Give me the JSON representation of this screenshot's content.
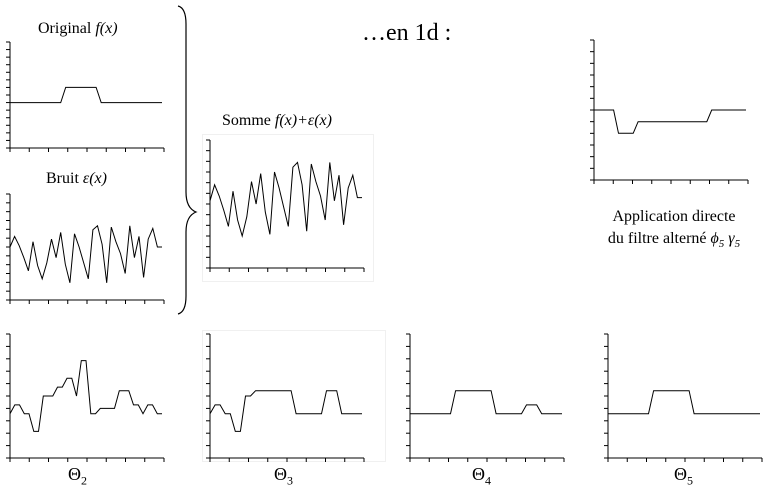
{
  "title": "…en 1d :",
  "original": {
    "prefix": "Original ",
    "func": "f(x)"
  },
  "noise": {
    "prefix": "Bruit ",
    "func": "ε(x)"
  },
  "sum": {
    "prefix": "Somme ",
    "func": "f(x)+ε(x)"
  },
  "application": {
    "line1": "Application directe",
    "line2_prefix": "du filtre alterné ",
    "phi": "ϕ",
    "gamma": "γ",
    "sub": "5"
  },
  "theta_labels": [
    {
      "symbol": "Θ",
      "sub": "2"
    },
    {
      "symbol": "Θ",
      "sub": "3"
    },
    {
      "symbol": "Θ",
      "sub": "4"
    },
    {
      "symbol": "Θ",
      "sub": "5"
    }
  ],
  "chart_data": [
    {
      "type": "line",
      "name": "original",
      "y": [
        3,
        3,
        3,
        3,
        3,
        3,
        3,
        3,
        3,
        3,
        3,
        4,
        4,
        4,
        4,
        4,
        4,
        4,
        3,
        3,
        3,
        3,
        3,
        3,
        3,
        3,
        3,
        3,
        3,
        3,
        3
      ],
      "ylim": [
        0,
        7
      ]
    },
    {
      "type": "line",
      "name": "noise",
      "y": [
        4,
        4.8,
        4.1,
        3.2,
        2.2,
        4.4,
        2.6,
        1.6,
        2.8,
        4.6,
        3.2,
        5.1,
        2.7,
        1.3,
        5.0,
        4.0,
        2.8,
        1.6,
        5.3,
        5.6,
        4.2,
        1.3,
        5.5,
        4.4,
        3.5,
        2.0,
        5.6,
        3.2,
        4.8,
        1.7,
        4.6,
        5.4,
        4.0,
        4.0
      ],
      "ylim": [
        0,
        8
      ]
    },
    {
      "type": "line",
      "name": "sum",
      "y": [
        4.2,
        5.2,
        4.5,
        3.6,
        2.6,
        4.8,
        3.0,
        2.0,
        3.2,
        5.4,
        4.0,
        5.9,
        3.5,
        2.1,
        6.0,
        5.0,
        3.8,
        2.6,
        6.3,
        6.6,
        5.2,
        2.3,
        6.5,
        5.4,
        4.5,
        3.0,
        6.6,
        4.2,
        5.8,
        2.7,
        5.0,
        5.8,
        4.4,
        4.4
      ],
      "ylim": [
        0,
        8
      ]
    },
    {
      "type": "line",
      "name": "phi5_gamma5",
      "y": [
        3,
        3,
        3,
        3,
        3,
        2,
        2,
        2,
        2,
        2.5,
        2.5,
        2.5,
        2.5,
        2.5,
        2.5,
        2.5,
        2.5,
        2.5,
        2.5,
        2.5,
        2.5,
        2.5,
        2.5,
        2.5,
        3,
        3,
        3,
        3,
        3,
        3,
        3,
        3
      ],
      "ylim": [
        0,
        6
      ]
    },
    {
      "type": "line",
      "name": "theta2",
      "y": [
        2.5,
        3,
        3,
        2.5,
        2.5,
        1.5,
        1.5,
        3.5,
        3.5,
        3.5,
        4,
        4,
        4.5,
        4.5,
        3.5,
        5.5,
        5.5,
        2.5,
        2.5,
        2.8,
        2.8,
        2.8,
        2.8,
        3.8,
        3.8,
        3.8,
        3,
        3,
        2.5,
        3,
        3,
        2.5,
        2.5
      ],
      "ylim": [
        0,
        7
      ]
    },
    {
      "type": "line",
      "name": "theta3",
      "y": [
        2.5,
        3,
        3,
        2.5,
        2.5,
        1.5,
        1.5,
        3.5,
        3.5,
        3.8,
        3.8,
        3.8,
        3.8,
        3.8,
        3.8,
        3.8,
        3.8,
        2.5,
        2.5,
        2.5,
        2.5,
        2.5,
        2.5,
        3.8,
        3.8,
        3.8,
        2.5,
        2.5,
        2.5,
        2.5,
        2.5
      ],
      "ylim": [
        0,
        7
      ]
    },
    {
      "type": "line",
      "name": "theta4",
      "y": [
        2.5,
        2.5,
        2.5,
        2.5,
        2.5,
        2.5,
        2.5,
        2.5,
        2.5,
        3.8,
        3.8,
        3.8,
        3.8,
        3.8,
        3.8,
        3.8,
        3.8,
        2.5,
        2.5,
        2.5,
        2.5,
        2.5,
        2.5,
        3,
        3,
        3,
        2.5,
        2.5,
        2.5,
        2.5,
        2.5
      ],
      "ylim": [
        0,
        7
      ]
    },
    {
      "type": "line",
      "name": "theta5",
      "y": [
        2.5,
        2.5,
        2.5,
        2.5,
        2.5,
        2.5,
        2.5,
        2.5,
        2.5,
        3.8,
        3.8,
        3.8,
        3.8,
        3.8,
        3.8,
        3.8,
        3.8,
        2.5,
        2.5,
        2.5,
        2.5,
        2.5,
        2.5,
        2.5,
        2.5,
        2.5,
        2.5,
        2.5,
        2.5,
        2.5,
        2.5
      ],
      "ylim": [
        0,
        7
      ]
    }
  ]
}
